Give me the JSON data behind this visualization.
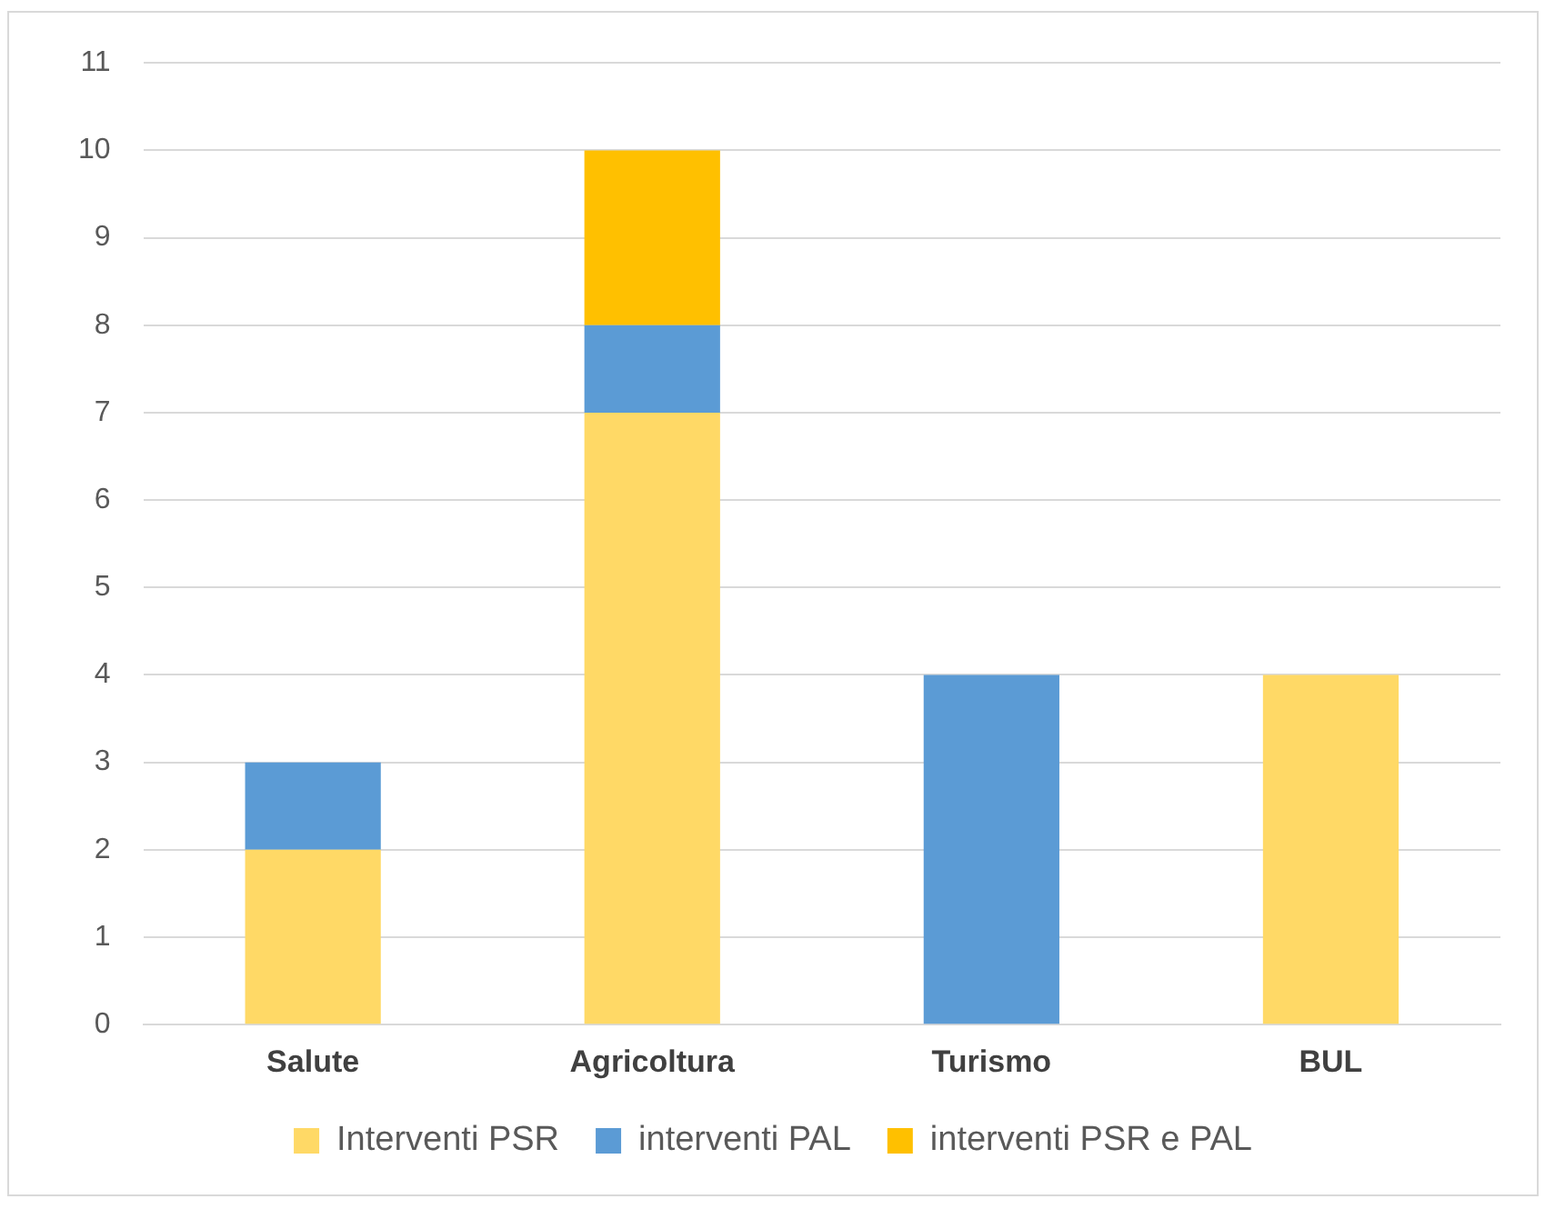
{
  "chart_data": {
    "type": "bar",
    "stacked": true,
    "categories": [
      "Salute",
      "Agricoltura",
      "Turismo",
      "BUL"
    ],
    "series": [
      {
        "name": "Interventi PSR",
        "color": "#ffd966",
        "values": [
          2,
          7,
          0,
          4
        ]
      },
      {
        "name": "interventi PAL",
        "color": "#5b9bd5",
        "values": [
          1,
          1,
          4,
          0
        ]
      },
      {
        "name": "interventi PSR e PAL",
        "color": "#ffc000",
        "values": [
          0,
          2,
          0,
          0
        ]
      }
    ],
    "ylim": [
      0,
      11
    ],
    "yticks": [
      0,
      1,
      2,
      3,
      4,
      5,
      6,
      7,
      8,
      9,
      10,
      11
    ],
    "grid": "y",
    "legend": "bottom"
  }
}
